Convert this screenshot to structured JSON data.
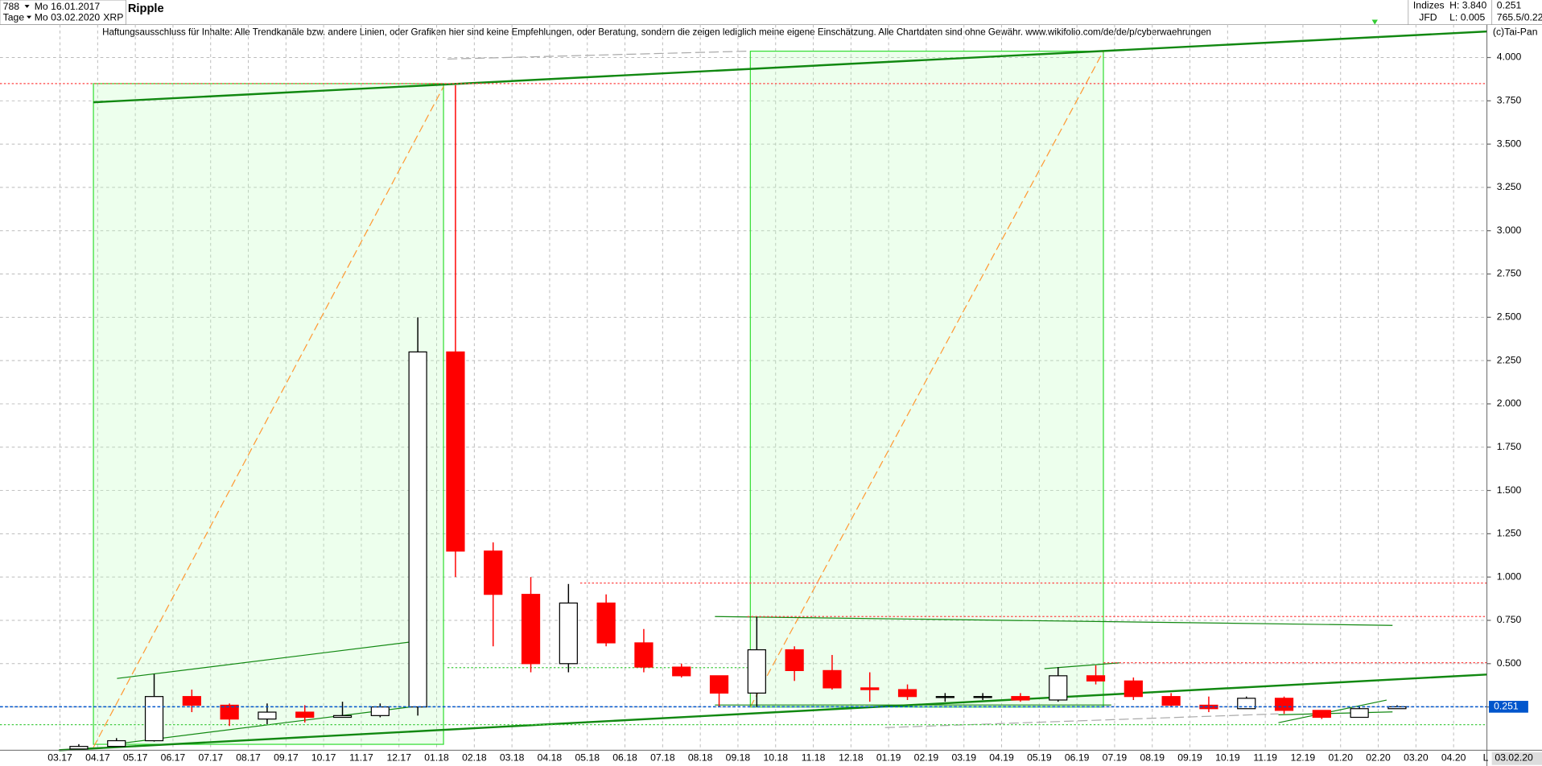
{
  "header": {
    "bars": "788",
    "from": "Mo 16.01.2017",
    "period": "Tage",
    "to": "Mo 03.02.2020",
    "symbol": "XRP",
    "name": "Ripple",
    "market": "Indizes",
    "exchange": "JFD",
    "high": "H: 3.840",
    "low": "L: 0.005",
    "ratio": "765.5/0.22",
    "disclaimer": "Haftungsausschluss für Inhalte: Alle Trendkanäle bzw. andere Linien, oder Grafiken hier sind keine Empfehlungen, oder Beratung, sondern die zeigen lediglich meine eigene Einschätzung. Alle Chartdaten sind ohne Gewähr.  www.wikifolio.com/de/de/p/cyberwaehrungen",
    "copyright": "(c)Tai-Pan",
    "date": "03.02.20",
    "scale": "L"
  },
  "chart_data": {
    "type": "candlestick",
    "last": 0.251,
    "categories": [
      "03.17",
      "04.17",
      "05.17",
      "06.17",
      "07.17",
      "08.17",
      "09.17",
      "10.17",
      "11.17",
      "12.17",
      "01.18",
      "02.18",
      "03.18",
      "04.18",
      "05.18",
      "06.18",
      "07.18",
      "08.18",
      "09.18",
      "10.18",
      "11.18",
      "12.18",
      "01.19",
      "02.19",
      "03.19",
      "04.19",
      "05.19",
      "06.19",
      "07.19",
      "08.19",
      "09.19",
      "10.19",
      "11.19",
      "12.19",
      "01.20",
      "02.20",
      "03.20",
      "04.20"
    ],
    "open": [
      0.007,
      0.022,
      0.055,
      0.31,
      0.26,
      0.18,
      0.22,
      0.19,
      0.2,
      0.25,
      2.3,
      1.15,
      0.9,
      0.5,
      0.85,
      0.62,
      0.48,
      0.43,
      0.33,
      0.58,
      0.46,
      0.36,
      0.35,
      0.31,
      0.31,
      0.31,
      0.29,
      0.43,
      0.4,
      0.31,
      0.26,
      0.24,
      0.3,
      0.23,
      0.19,
      0.24,
      null,
      null
    ],
    "high": [
      0.035,
      0.07,
      0.44,
      0.35,
      0.27,
      0.27,
      0.26,
      0.28,
      0.27,
      2.5,
      3.84,
      1.2,
      1.0,
      0.96,
      0.9,
      0.7,
      0.5,
      0.43,
      0.77,
      0.6,
      0.55,
      0.45,
      0.38,
      0.33,
      0.33,
      0.33,
      0.48,
      0.49,
      0.42,
      0.33,
      0.31,
      0.31,
      0.31,
      0.23,
      0.25,
      0.26,
      null,
      null
    ],
    "low": [
      0.005,
      0.02,
      0.05,
      0.22,
      0.14,
      0.15,
      0.16,
      0.19,
      0.19,
      0.2,
      1.0,
      0.6,
      0.45,
      0.45,
      0.6,
      0.45,
      0.42,
      0.25,
      0.25,
      0.4,
      0.35,
      0.28,
      0.29,
      0.28,
      0.29,
      0.28,
      0.28,
      0.38,
      0.29,
      0.25,
      0.22,
      0.24,
      0.21,
      0.18,
      0.19,
      0.24,
      null,
      null
    ],
    "close": [
      0.022,
      0.055,
      0.31,
      0.26,
      0.18,
      0.22,
      0.19,
      0.2,
      0.25,
      2.3,
      1.15,
      0.9,
      0.5,
      0.85,
      0.62,
      0.48,
      0.43,
      0.33,
      0.58,
      0.46,
      0.36,
      0.35,
      0.31,
      0.31,
      0.31,
      0.29,
      0.43,
      0.4,
      0.31,
      0.26,
      0.24,
      0.3,
      0.23,
      0.19,
      0.24,
      0.251,
      null,
      null
    ],
    "up_color": "#000000",
    "down_color": "#ff0000",
    "last_color": "#0055cc",
    "ylim": [
      0,
      4.19
    ],
    "yticks": [
      {
        "value": 0.25,
        "label": "0.250"
      },
      {
        "value": 0.5,
        "label": "0.500"
      },
      {
        "value": 0.75,
        "label": "0.750"
      },
      {
        "value": 1,
        "label": "1.000"
      },
      {
        "value": 1.25,
        "label": "1.250"
      },
      {
        "value": 1.5,
        "label": "1.500"
      },
      {
        "value": 1.75,
        "label": "1.750"
      },
      {
        "value": 2,
        "label": "2.000"
      },
      {
        "value": 2.25,
        "label": "2.250"
      },
      {
        "value": 2.5,
        "label": "2.500"
      },
      {
        "value": 2.75,
        "label": "2.750"
      },
      {
        "value": 3,
        "label": "3.000"
      },
      {
        "value": 3.25,
        "label": "3.250"
      },
      {
        "value": 3.5,
        "label": "3.500"
      },
      {
        "value": 3.75,
        "label": "3.750"
      },
      {
        "value": 4,
        "label": "4.000"
      }
    ],
    "grid": true
  }
}
